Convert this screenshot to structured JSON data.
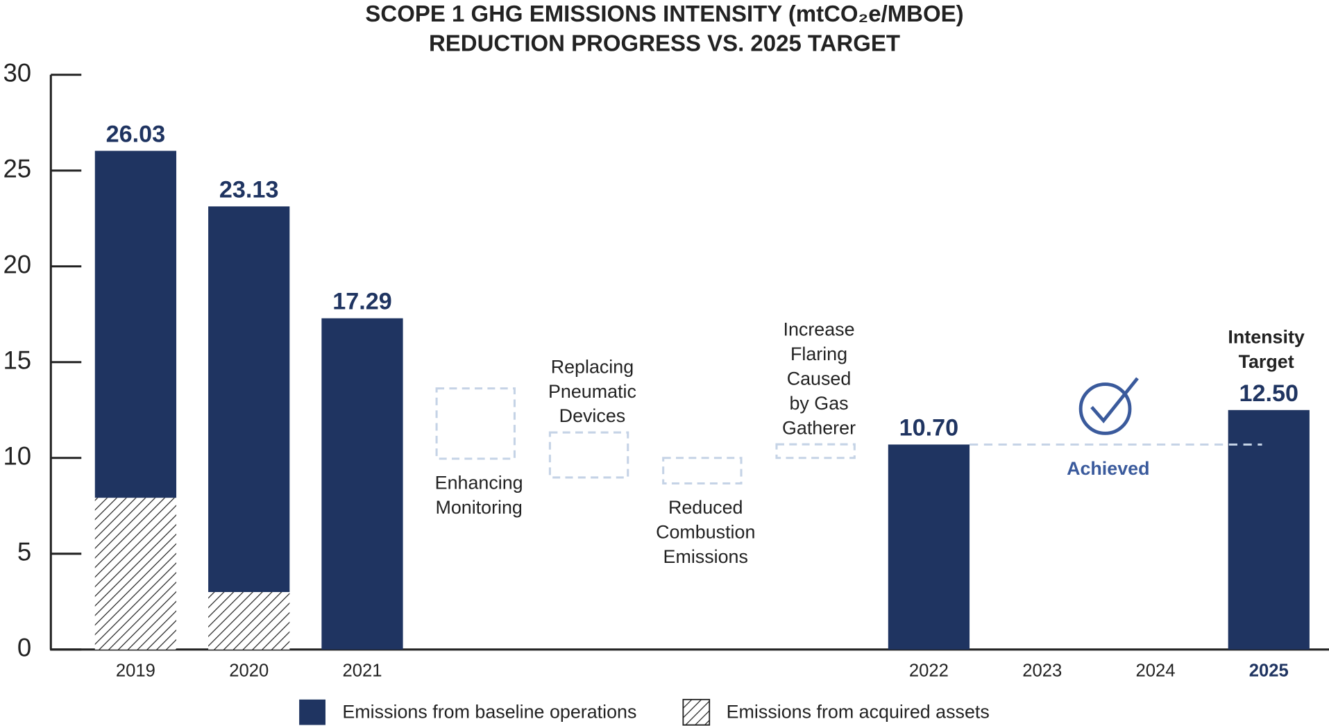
{
  "chart_data": {
    "type": "waterfall",
    "title": "SCOPE 1 GHG EMISSIONS INTENSITY (mtCO₂e/MBOE)",
    "subtitle": "REDUCTION PROGRESS VS. 2025 TARGET",
    "categories": [
      "2019",
      "2020",
      "2021",
      null,
      null,
      null,
      null,
      "2022",
      "2023",
      "2024",
      "2025"
    ],
    "series": [
      {
        "name": "Emissions from acquired assets",
        "color": "#222222",
        "hatch": true,
        "values": [
          7.92,
          3.0,
          null,
          null,
          null,
          null,
          null,
          null,
          null,
          null,
          null
        ]
      },
      {
        "name": "Emissions from baseline operations",
        "color": "#1f3461",
        "hatch": false,
        "values": [
          18.11,
          20.13,
          17.29,
          null,
          null,
          null,
          null,
          10.7,
          null,
          null,
          12.5
        ]
      }
    ],
    "totals": {
      "values": [
        26.03,
        23.13,
        17.29,
        null,
        null,
        null,
        null,
        10.7,
        null,
        null,
        12.5
      ],
      "value_labels": [
        "26.03",
        "23.13",
        "17.29",
        null,
        null,
        null,
        null,
        "10.70",
        null,
        null,
        "12.50"
      ]
    },
    "steps": [
      {
        "label": [
          "Enhancing",
          "Monitoring"
        ],
        "low": 9.96,
        "high": 13.63
      },
      {
        "label": [
          "Replacing",
          "Pneumatic",
          "Devices"
        ],
        "low": 8.98,
        "high": 11.33
      },
      {
        "label": [
          "Reduced",
          "Combustion",
          "Emissions"
        ],
        "low": 8.67,
        "high": 10.0
      },
      {
        "label": [
          "Increase",
          "Flaring",
          "Caused",
          "by Gas",
          "Gatherer"
        ],
        "low": 10.0,
        "high": 10.71
      }
    ],
    "target_label": [
      "Intensity",
      "Target"
    ],
    "achieved_label": "Achieved",
    "ylim": [
      0,
      30
    ],
    "yticks": [
      0,
      5,
      10,
      15,
      20,
      25,
      30
    ],
    "grid": false
  }
}
